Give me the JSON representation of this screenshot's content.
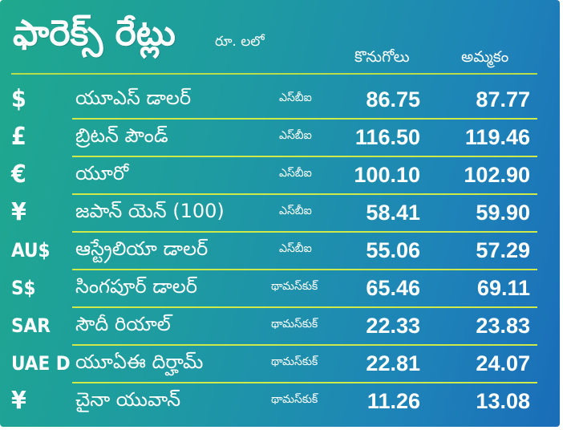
{
  "header": {
    "title": "ఫారెక్స్ రేట్లు",
    "unit": "రూ. లలో",
    "buy_label": "కొనుగోలు",
    "sell_label": "అమ్మకం"
  },
  "colors": {
    "gradient_start": "#1fa98d",
    "gradient_end": "#1a6db8",
    "rule": "#cfe84a",
    "text": "#ffffff"
  },
  "rates": [
    {
      "symbol": "$",
      "name": "యూఎస్ డాలర్",
      "source": "ఎస్‌బీఐ",
      "buy": "86.75",
      "sell": "87.77"
    },
    {
      "symbol": "£",
      "name": "బ్రిటన్ పౌండ్",
      "source": "ఎస్‌బీఐ",
      "buy": "116.50",
      "sell": "119.46"
    },
    {
      "symbol": "€",
      "name": "యూరో",
      "source": "ఎస్‌బీఐ",
      "buy": "100.10",
      "sell": "102.90"
    },
    {
      "symbol": "¥",
      "name": "జపాన్ యెన్ (100)",
      "source": "ఎస్‌బీఐ",
      "buy": "58.41",
      "sell": "59.90"
    },
    {
      "symbol": "AU$",
      "name": "ఆస్ట్రేలియా డాలర్",
      "source": "ఎస్‌బీఐ",
      "buy": "55.06",
      "sell": "57.29"
    },
    {
      "symbol": "S$",
      "name": "సింగపూర్ డాలర్",
      "source": "థామస్‌కుక్",
      "buy": "65.46",
      "sell": "69.11"
    },
    {
      "symbol": "SAR",
      "name": "సౌదీ రియాల్",
      "source": "థామస్‌కుక్",
      "buy": "22.33",
      "sell": "23.83"
    },
    {
      "symbol": "UAE D",
      "name": "యూఏఈ దిర్హామ్",
      "source": "థామస్‌కుక్",
      "buy": "22.81",
      "sell": "24.07"
    },
    {
      "symbol": "¥",
      "name": "చైనా యువాన్",
      "source": "థామస్‌కుక్",
      "buy": "11.26",
      "sell": "13.08"
    }
  ]
}
